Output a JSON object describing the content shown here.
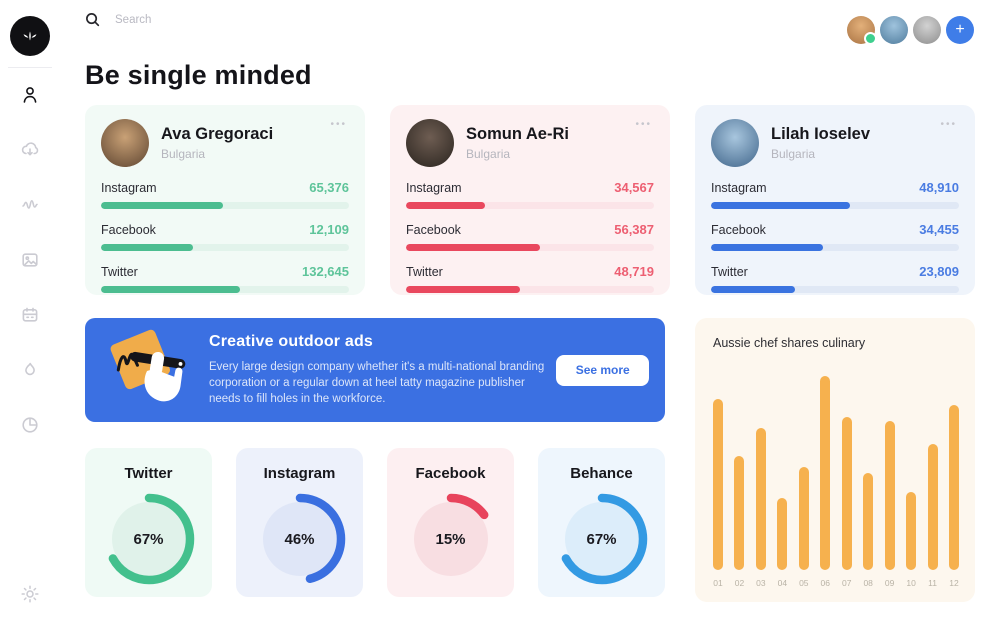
{
  "topbar": {
    "search_placeholder": "Search",
    "add_label": "+",
    "avatars": [
      {
        "name": "user-avatar-1",
        "online": true,
        "c1": "#e3b07a",
        "c2": "#a97343"
      },
      {
        "name": "user-avatar-2",
        "online": false,
        "c1": "#9fc3dd",
        "c2": "#4f7c9d"
      },
      {
        "name": "user-avatar-3",
        "online": false,
        "c1": "#d2d2d2",
        "c2": "#8d8d8d"
      }
    ]
  },
  "sidebar": {
    "icons": [
      "user-icon",
      "cloud-download-icon",
      "activity-icon",
      "image-icon",
      "calendar-icon",
      "flame-icon",
      "pie-chart-icon"
    ],
    "bottom_icon": "gear-icon",
    "logo_icon": "sprout-icon"
  },
  "page_title": "Be single minded",
  "icons": {
    "more": "•••"
  },
  "profiles": [
    {
      "name": "Ava Gregoraci",
      "location": "Bulgaria",
      "theme": "green",
      "avatar": {
        "c1": "#c9a176",
        "c2": "#5d4430"
      },
      "stats": [
        {
          "label": "Instagram",
          "value": "65,376",
          "bar_pct": 49
        },
        {
          "label": "Facebook",
          "value": "12,109",
          "bar_pct": 37
        },
        {
          "label": "Twitter",
          "value": "132,645",
          "bar_pct": 56
        }
      ]
    },
    {
      "name": "Somun Ae-Ri",
      "location": "Bulgaria",
      "theme": "red",
      "avatar": {
        "c1": "#6e5d52",
        "c2": "#2a241f"
      },
      "stats": [
        {
          "label": "Instagram",
          "value": "34,567",
          "bar_pct": 32
        },
        {
          "label": "Facebook",
          "value": "56,387",
          "bar_pct": 54
        },
        {
          "label": "Twitter",
          "value": "48,719",
          "bar_pct": 46
        }
      ]
    },
    {
      "name": "Lilah Ioselev",
      "location": "Bulgaria",
      "theme": "blue",
      "avatar": {
        "c1": "#a8c6de",
        "c2": "#40658a"
      },
      "stats": [
        {
          "label": "Instagram",
          "value": "48,910",
          "bar_pct": 56
        },
        {
          "label": "Facebook",
          "value": "34,455",
          "bar_pct": 45
        },
        {
          "label": "Twitter",
          "value": "23,809",
          "bar_pct": 34
        }
      ]
    }
  ],
  "banner": {
    "title": "Creative outdoor ads",
    "body": "Every large design company whether it's a multi-national branding corporation or a regular down at heel tatty magazine publisher needs to fill holes in the workforce.",
    "button_label": "See more",
    "bg": "#3b70e2",
    "accent": "#f0ac4a"
  },
  "chart_data": {
    "type": "bar",
    "title": "Aussie chef shares culinary",
    "categories": [
      "01",
      "02",
      "03",
      "04",
      "05",
      "06",
      "07",
      "08",
      "09",
      "10",
      "11",
      "12"
    ],
    "values": [
      88,
      59,
      73,
      37,
      53,
      100,
      79,
      50,
      77,
      40,
      65,
      85
    ],
    "xlabel": "",
    "ylabel": "",
    "ylim": [
      0,
      100
    ],
    "grid": false,
    "legend": false,
    "bar_color": "#f6b14e",
    "card_bg": "#fdf7ee"
  },
  "rings": [
    {
      "label": "Twitter",
      "pct": 67,
      "pct_label": "67%",
      "ring": "#43c08d",
      "disc": "#e0f2ea",
      "card": "#effaf5"
    },
    {
      "label": "Instagram",
      "pct": 46,
      "pct_label": "46%",
      "ring": "#3a6fe0",
      "disc": "#dfe6f7",
      "card": "#edf1fb"
    },
    {
      "label": "Facebook",
      "pct": 15,
      "pct_label": "15%",
      "ring": "#e8435c",
      "disc": "#f8dee2",
      "card": "#fdeff1"
    },
    {
      "label": "Behance",
      "pct": 67,
      "pct_label": "67%",
      "ring": "#339ae3",
      "disc": "#dcedfa",
      "card": "#eef6fd"
    }
  ],
  "colors": {
    "green": {
      "bar": "#4cbd90",
      "text": "#5ec49a",
      "track": "#e2f3eb",
      "card": "#f2faf6"
    },
    "red": {
      "bar": "#e9485e",
      "text": "#ed5f72",
      "track": "#fbe4e8",
      "card": "#fdf1f2"
    },
    "blue": {
      "bar": "#3a73e0",
      "text": "#4a7ce2",
      "track": "#e0e8f5",
      "card": "#eff4fb"
    },
    "add_button": "#3f7de8",
    "status_online": "#3ecf8e"
  }
}
